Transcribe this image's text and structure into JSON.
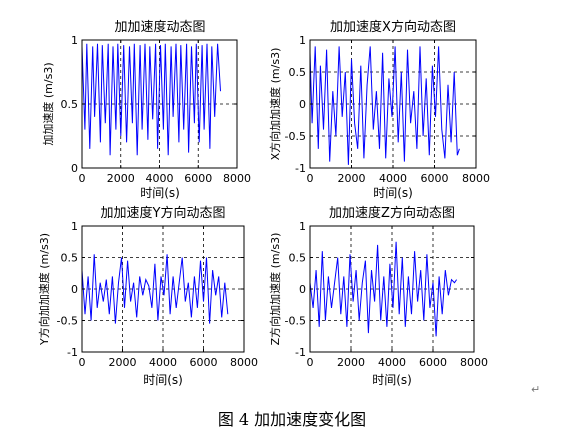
{
  "chart_data": [
    {
      "type": "line",
      "title": "加加速度动态图",
      "xlabel": "时间(s)",
      "ylabel": "加加速度 (m/s3)",
      "xlim": [
        0,
        8000
      ],
      "ylim": [
        0,
        1
      ],
      "xticks": [
        "0",
        "2000",
        "4000",
        "6000",
        "8000"
      ],
      "yticks": [
        "0",
        "0.5",
        "1"
      ],
      "grid": "dashed",
      "color": "#0000ff",
      "series": [
        {
          "x": [
            0,
            150,
            250,
            400,
            550,
            650,
            800,
            950,
            1050,
            1200,
            1350,
            1450,
            1600,
            1750,
            1850,
            2000,
            2150,
            2300,
            2450,
            2600,
            2700,
            2850,
            3000,
            3100,
            3250,
            3400,
            3500,
            3650,
            3800,
            3900,
            4050,
            4200,
            4300,
            4450,
            4600,
            4700,
            4850,
            5000,
            5100,
            5250,
            5400,
            5500,
            5650,
            5800,
            5900,
            6050,
            6200,
            6300,
            6450,
            6600,
            6700,
            6850,
            7000,
            7150
          ],
          "y": [
            0.95,
            0.3,
            0.97,
            0.15,
            0.95,
            0.4,
            0.97,
            0.2,
            0.96,
            0.35,
            0.97,
            0.1,
            0.95,
            0.3,
            0.97,
            0.25,
            0.96,
            0.2,
            0.95,
            0.35,
            0.97,
            0.1,
            0.96,
            0.3,
            0.97,
            0.22,
            0.95,
            0.38,
            0.97,
            0.15,
            0.96,
            0.3,
            0.97,
            0.1,
            0.95,
            0.4,
            0.97,
            0.2,
            0.96,
            0.3,
            0.97,
            0.12,
            0.95,
            0.35,
            0.97,
            0.2,
            0.96,
            0.3,
            0.97,
            0.15,
            0.95,
            0.4,
            0.97,
            0.6
          ]
        }
      ]
    },
    {
      "type": "line",
      "title": "加加速度X方向动态图",
      "xlabel": "时间(s)",
      "ylabel": "X方向加加速度 (m/s3)",
      "xlim": [
        0,
        8000
      ],
      "ylim": [
        -1,
        1
      ],
      "xticks": [
        "0",
        "2000",
        "4000",
        "6000",
        "8000"
      ],
      "yticks": [
        "-1",
        "-0.5",
        "0",
        "0.5",
        "1"
      ],
      "grid": "dashed",
      "color": "#0000ff",
      "series": [
        {
          "x": [
            0,
            100,
            250,
            400,
            500,
            650,
            800,
            950,
            1100,
            1250,
            1400,
            1550,
            1700,
            1850,
            2000,
            2150,
            2300,
            2450,
            2600,
            2750,
            2900,
            3050,
            3200,
            3350,
            3500,
            3650,
            3800,
            3950,
            4100,
            4250,
            4400,
            4550,
            4700,
            4850,
            5000,
            5150,
            5300,
            5450,
            5600,
            5750,
            5900,
            6050,
            6200,
            6350,
            6500,
            6650,
            6800,
            6950,
            7100,
            7200
          ],
          "y": [
            0.8,
            -0.3,
            0.9,
            -0.7,
            0.6,
            -0.4,
            0.85,
            -0.9,
            0.2,
            -0.5,
            0.9,
            -0.2,
            0.5,
            -0.95,
            0.7,
            -0.3,
            -0.7,
            0.6,
            -0.85,
            0.3,
            0.9,
            -0.4,
            0.2,
            -0.7,
            0.8,
            -0.85,
            0.4,
            -0.2,
            0.9,
            -0.6,
            0.5,
            -0.9,
            0.85,
            -0.3,
            0.2,
            -0.7,
            0.9,
            -0.5,
            0.4,
            -0.8,
            0.6,
            -0.2,
            0.9,
            -0.4,
            -0.85,
            0.3,
            -0.6,
            0.5,
            -0.8,
            -0.7
          ]
        }
      ]
    },
    {
      "type": "line",
      "title": "加加速度Y方向动态图",
      "xlabel": "时间(s)",
      "ylabel": "Y方向加加速度 (m/s3)",
      "xlim": [
        0,
        8000
      ],
      "ylim": [
        -1,
        1
      ],
      "xticks": [
        "0",
        "2000",
        "4000",
        "6000",
        "8000"
      ],
      "yticks": [
        "-1",
        "-0.5",
        "0",
        "0.5",
        "1"
      ],
      "grid": "dashed",
      "color": "#0000ff",
      "series": [
        {
          "x": [
            0,
            150,
            300,
            450,
            600,
            750,
            900,
            1050,
            1200,
            1350,
            1500,
            1650,
            1800,
            1950,
            2100,
            2250,
            2400,
            2550,
            2700,
            2850,
            3000,
            3150,
            3300,
            3450,
            3600,
            3750,
            3900,
            4050,
            4200,
            4350,
            4500,
            4650,
            4800,
            4950,
            5100,
            5250,
            5400,
            5550,
            5700,
            5850,
            6000,
            6150,
            6300,
            6450,
            6600,
            6750,
            6900,
            7050,
            7200
          ],
          "y": [
            0.3,
            -0.4,
            0.2,
            -0.5,
            0.55,
            -0.3,
            0.1,
            -0.2,
            0.15,
            -0.4,
            0.2,
            -0.55,
            0.1,
            0.5,
            -0.3,
            0.45,
            -0.2,
            0.1,
            -0.45,
            0.2,
            -0.1,
            0.15,
            0.05,
            -0.3,
            0.4,
            -0.5,
            0.2,
            -0.1,
            0.55,
            -0.4,
            0.2,
            -0.3,
            0.1,
            0.5,
            -0.2,
            0.1,
            -0.45,
            0.2,
            -0.3,
            0.45,
            -0.2,
            0.5,
            -0.55,
            0.3,
            -0.1,
            0.2,
            -0.45,
            0.1,
            -0.4
          ]
        }
      ]
    },
    {
      "type": "line",
      "title": "加加速度Z方向动态图",
      "xlabel": "时间(s)",
      "ylabel": "Z方向加加速度 (m/s3)",
      "xlim": [
        0,
        8000
      ],
      "ylim": [
        -1,
        1
      ],
      "xticks": [
        "0",
        "2000",
        "4000",
        "6000",
        "8000"
      ],
      "yticks": [
        "-1",
        "-0.5",
        "0",
        "0.5",
        "1"
      ],
      "grid": "dashed",
      "color": "#0000ff",
      "series": [
        {
          "x": [
            0,
            150,
            300,
            450,
            600,
            750,
            900,
            1050,
            1200,
            1350,
            1500,
            1650,
            1800,
            1950,
            2100,
            2250,
            2400,
            2550,
            2700,
            2850,
            3000,
            3150,
            3300,
            3450,
            3600,
            3750,
            3900,
            4050,
            4200,
            4350,
            4500,
            4650,
            4800,
            4950,
            5100,
            5250,
            5400,
            5550,
            5700,
            5850,
            6000,
            6150,
            6300,
            6450,
            6600,
            6750,
            6900,
            7050,
            7150
          ],
          "y": [
            0.1,
            -0.3,
            0.3,
            -0.6,
            0.6,
            -0.5,
            0.2,
            -0.3,
            0.1,
            0.5,
            -0.4,
            0.2,
            -0.6,
            0.55,
            -0.2,
            0.3,
            -0.5,
            0.1,
            0.45,
            -0.7,
            0.3,
            -0.2,
            0.7,
            -0.5,
            0.2,
            -0.6,
            0.4,
            -0.3,
            0.75,
            -0.4,
            0.5,
            -0.6,
            0.2,
            -0.4,
            0.6,
            -0.2,
            0.3,
            -0.5,
            0.55,
            -0.3,
            0.1,
            -0.75,
            0.2,
            -0.4,
            0.3,
            -0.1,
            0.15,
            0.1,
            0.15
          ]
        }
      ]
    }
  ],
  "caption": "图 4  加加速度变化图",
  "paragraph_mark": "↵"
}
